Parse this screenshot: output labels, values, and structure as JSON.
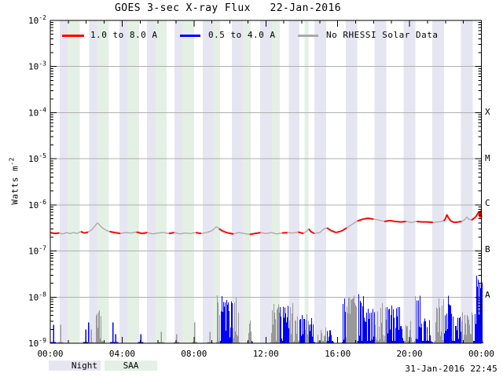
{
  "title": "GOES 3-sec X-ray Flux   22-Jan-2016",
  "generated_stamp": "31-Jan-2016 22:45",
  "legend": {
    "items": [
      {
        "label": "1.0 to 8.0 A",
        "color": "#ff0000"
      },
      {
        "label": "0.5 to 4.0 A",
        "color": "#0000ff"
      },
      {
        "label": "No RHESSI Solar Data",
        "color": "#aaaaaa"
      }
    ]
  },
  "band_legend": {
    "night_label": "Night",
    "night_color": "#e6e6f2",
    "saa_label": "SAA",
    "saa_color": "#e4f0e4"
  },
  "chart_data": {
    "type": "line",
    "title": "GOES 3-sec X-ray Flux   22-Jan-2016",
    "ylabel_base": "Watts m",
    "ylabel_exponent": "-2",
    "x_range_hours": [
      0,
      24
    ],
    "x_tick_labels": [
      "00:00",
      "04:00",
      "08:00",
      "12:00",
      "16:00",
      "20:00",
      "00:00"
    ],
    "x_major_tick_hours": 4,
    "x_minor_tick_hours": 1,
    "y_log_range": [
      -9,
      -2
    ],
    "y_tick_exponents": [
      "-2",
      "-3",
      "-4",
      "-5",
      "-6",
      "-7",
      "-8",
      "-9"
    ],
    "grid_exponents": [
      -3,
      -4,
      -5,
      -6,
      -7,
      -8
    ],
    "grid_color": "#b0b0b0",
    "flare_class_labels": [
      {
        "label": "X",
        "log_level": -4
      },
      {
        "label": "M",
        "log_level": -5
      },
      {
        "label": "C",
        "log_level": -6
      },
      {
        "label": "B",
        "log_level": -7
      },
      {
        "label": "A",
        "log_level": -8
      }
    ],
    "night_bands_hours": [
      [
        0.53,
        0.96
      ],
      [
        2.17,
        2.61
      ],
      [
        3.85,
        4.29
      ],
      [
        5.38,
        5.86
      ],
      [
        6.91,
        7.35
      ],
      [
        8.48,
        9.09
      ],
      [
        10.11,
        10.72
      ],
      [
        11.68,
        12.34
      ],
      [
        13.29,
        13.87
      ],
      [
        14.7,
        15.36
      ],
      [
        16.45,
        17.08
      ],
      [
        18.06,
        18.71
      ],
      [
        19.66,
        20.32
      ],
      [
        21.26,
        21.92
      ],
      [
        22.87,
        23.52
      ]
    ],
    "saa_bands_hours": [
      [
        0.96,
        1.63
      ],
      [
        2.61,
        3.27
      ],
      [
        4.29,
        4.94
      ],
      [
        5.86,
        6.47
      ],
      [
        7.35,
        8.01
      ],
      [
        9.09,
        9.45
      ],
      [
        10.72,
        11.16
      ],
      [
        12.34,
        12.77
      ],
      [
        14.16,
        14.38
      ]
    ],
    "no_rhessi_intervals_hours": [
      [
        0.53,
        1.63
      ],
      [
        2.17,
        3.27
      ],
      [
        3.85,
        4.94
      ],
      [
        5.38,
        6.47
      ],
      [
        6.91,
        8.01
      ],
      [
        8.48,
        9.45
      ],
      [
        10.11,
        11.16
      ],
      [
        11.68,
        12.77
      ],
      [
        13.29,
        13.87
      ],
      [
        14.16,
        14.38
      ],
      [
        14.7,
        15.36
      ],
      [
        16.45,
        17.08
      ],
      [
        18.06,
        18.71
      ],
      [
        19.66,
        20.32
      ],
      [
        21.26,
        21.92
      ],
      [
        22.87,
        23.52
      ]
    ],
    "series": [
      {
        "name": "1.0 to 8.0 A",
        "channel": "long",
        "color": "#ff0000",
        "no_data_color": "#aaaaaa",
        "points_t_log10flux": [
          [
            0.0,
            -6.6
          ],
          [
            0.25,
            -6.62
          ],
          [
            0.5,
            -6.61
          ],
          [
            0.7,
            -6.63
          ],
          [
            0.9,
            -6.6
          ],
          [
            1.1,
            -6.62
          ],
          [
            1.3,
            -6.6
          ],
          [
            1.5,
            -6.62
          ],
          [
            1.7,
            -6.58
          ],
          [
            1.9,
            -6.61
          ],
          [
            2.1,
            -6.59
          ],
          [
            2.3,
            -6.54
          ],
          [
            2.5,
            -6.45
          ],
          [
            2.62,
            -6.39
          ],
          [
            2.75,
            -6.44
          ],
          [
            2.9,
            -6.5
          ],
          [
            3.1,
            -6.55
          ],
          [
            3.3,
            -6.58
          ],
          [
            3.6,
            -6.6
          ],
          [
            3.9,
            -6.62
          ],
          [
            4.2,
            -6.6
          ],
          [
            4.5,
            -6.61
          ],
          [
            4.8,
            -6.59
          ],
          [
            5.1,
            -6.62
          ],
          [
            5.4,
            -6.6
          ],
          [
            5.7,
            -6.63
          ],
          [
            6.0,
            -6.61
          ],
          [
            6.3,
            -6.6
          ],
          [
            6.6,
            -6.62
          ],
          [
            6.9,
            -6.6
          ],
          [
            7.2,
            -6.63
          ],
          [
            7.5,
            -6.61
          ],
          [
            7.8,
            -6.62
          ],
          [
            8.1,
            -6.6
          ],
          [
            8.4,
            -6.62
          ],
          [
            8.7,
            -6.6
          ],
          [
            9.0,
            -6.56
          ],
          [
            9.15,
            -6.51
          ],
          [
            9.25,
            -6.47
          ],
          [
            9.4,
            -6.52
          ],
          [
            9.6,
            -6.57
          ],
          [
            9.9,
            -6.61
          ],
          [
            10.2,
            -6.63
          ],
          [
            10.5,
            -6.6
          ],
          [
            10.8,
            -6.62
          ],
          [
            11.1,
            -6.64
          ],
          [
            11.4,
            -6.62
          ],
          [
            11.7,
            -6.6
          ],
          [
            12.0,
            -6.62
          ],
          [
            12.3,
            -6.6
          ],
          [
            12.6,
            -6.63
          ],
          [
            12.9,
            -6.61
          ],
          [
            13.2,
            -6.6
          ],
          [
            13.5,
            -6.61
          ],
          [
            13.8,
            -6.59
          ],
          [
            14.1,
            -6.62
          ],
          [
            14.3,
            -6.56
          ],
          [
            14.4,
            -6.52
          ],
          [
            14.5,
            -6.58
          ],
          [
            14.7,
            -6.62
          ],
          [
            15.0,
            -6.6
          ],
          [
            15.25,
            -6.52
          ],
          [
            15.4,
            -6.5
          ],
          [
            15.6,
            -6.55
          ],
          [
            15.9,
            -6.6
          ],
          [
            16.2,
            -6.57
          ],
          [
            16.5,
            -6.5
          ],
          [
            16.8,
            -6.42
          ],
          [
            17.1,
            -6.35
          ],
          [
            17.4,
            -6.31
          ],
          [
            17.7,
            -6.29
          ],
          [
            18.0,
            -6.31
          ],
          [
            18.3,
            -6.33
          ],
          [
            18.6,
            -6.36
          ],
          [
            18.9,
            -6.34
          ],
          [
            19.2,
            -6.36
          ],
          [
            19.5,
            -6.37
          ],
          [
            19.8,
            -6.36
          ],
          [
            20.1,
            -6.38
          ],
          [
            20.4,
            -6.36
          ],
          [
            20.7,
            -6.37
          ],
          [
            21.0,
            -6.37
          ],
          [
            21.3,
            -6.38
          ],
          [
            21.6,
            -6.37
          ],
          [
            21.9,
            -6.35
          ],
          [
            22.0,
            -6.3
          ],
          [
            22.08,
            -6.21
          ],
          [
            22.15,
            -6.27
          ],
          [
            22.3,
            -6.35
          ],
          [
            22.5,
            -6.38
          ],
          [
            22.7,
            -6.37
          ],
          [
            22.9,
            -6.36
          ],
          [
            23.1,
            -6.31
          ],
          [
            23.18,
            -6.26
          ],
          [
            23.3,
            -6.31
          ],
          [
            23.45,
            -6.33
          ],
          [
            23.6,
            -6.29
          ],
          [
            23.72,
            -6.24
          ],
          [
            23.8,
            -6.19
          ],
          [
            23.87,
            -6.14
          ],
          [
            23.92,
            -6.28
          ],
          [
            23.96,
            -6.12
          ],
          [
            24.0,
            -6.27
          ]
        ]
      },
      {
        "name": "0.5 to 4.0 A",
        "channel": "short",
        "color": "#0000ff",
        "no_data_color": "#999999",
        "floor_log10flux": -9,
        "activity_clusters_t0_t1_peaklog": [
          [
            2.55,
            2.85,
            -8.2
          ],
          [
            9.3,
            10.45,
            -7.95
          ],
          [
            11.0,
            11.2,
            -8.45
          ],
          [
            12.3,
            13.45,
            -8.1
          ],
          [
            13.6,
            14.6,
            -8.35
          ],
          [
            14.9,
            15.7,
            -8.6
          ],
          [
            16.3,
            17.45,
            -7.9
          ],
          [
            17.5,
            18.3,
            -8.2
          ],
          [
            18.4,
            19.4,
            -8.1
          ],
          [
            19.5,
            20.05,
            -8.5
          ],
          [
            20.3,
            20.55,
            -7.95
          ],
          [
            20.6,
            21.15,
            -8.4
          ],
          [
            21.4,
            22.3,
            -7.95
          ],
          [
            22.4,
            23.0,
            -8.3
          ],
          [
            23.05,
            23.65,
            -8.25
          ],
          [
            23.75,
            24.0,
            -7.5
          ]
        ],
        "spikes_t_peaklog": [
          [
            0.15,
            -8.6
          ],
          [
            0.55,
            -8.6
          ],
          [
            1.95,
            -8.7
          ],
          [
            2.1,
            -8.55
          ],
          [
            2.25,
            -8.7
          ],
          [
            3.45,
            -8.55
          ],
          [
            3.6,
            -8.8
          ],
          [
            5.0,
            -8.8
          ],
          [
            6.15,
            -8.75
          ],
          [
            7.0,
            -8.8
          ],
          [
            8.0,
            -8.55
          ],
          [
            8.85,
            -8.75
          ]
        ]
      }
    ]
  }
}
